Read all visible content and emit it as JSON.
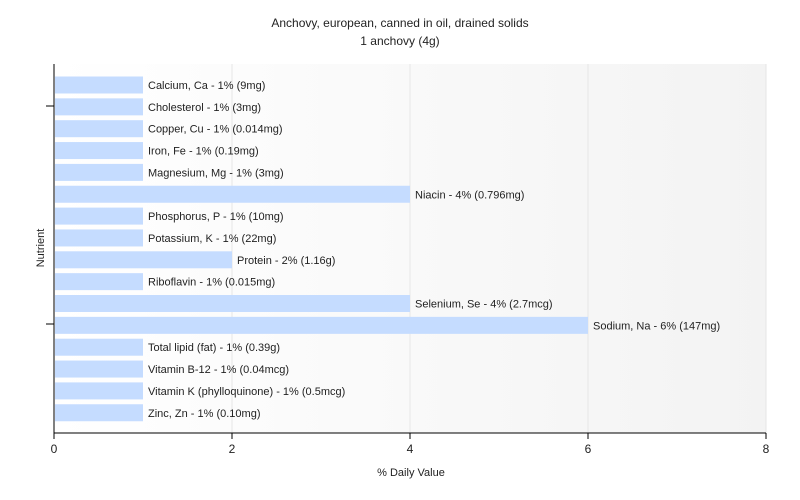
{
  "chart_data": {
    "type": "bar",
    "orientation": "horizontal",
    "title": "Anchovy, european, canned in oil, drained solids",
    "subtitle": "1 anchovy (4g)",
    "xlabel": "% Daily Value",
    "ylabel": "Nutrient",
    "xlim": [
      0,
      8
    ],
    "xticks": [
      0,
      2,
      4,
      6,
      8
    ],
    "grid": true,
    "bar_color": "#c5dcff",
    "categories": [
      "Calcium, Ca",
      "Cholesterol",
      "Copper, Cu",
      "Iron, Fe",
      "Magnesium, Mg",
      "Niacin",
      "Phosphorus, P",
      "Potassium, K",
      "Protein",
      "Riboflavin",
      "Selenium, Se",
      "Sodium, Na",
      "Total lipid (fat)",
      "Vitamin B-12",
      "Vitamin K (phylloquinone)",
      "Zinc, Zn"
    ],
    "values": [
      1,
      1,
      1,
      1,
      1,
      4,
      1,
      1,
      2,
      1,
      4,
      6,
      1,
      1,
      1,
      1
    ],
    "labels": [
      "Calcium, Ca - 1% (9mg)",
      "Cholesterol - 1% (3mg)",
      "Copper, Cu - 1% (0.014mg)",
      "Iron, Fe - 1% (0.19mg)",
      "Magnesium, Mg - 1% (3mg)",
      "Niacin - 4% (0.796mg)",
      "Phosphorus, P - 1% (10mg)",
      "Potassium, K - 1% (22mg)",
      "Protein - 2% (1.16g)",
      "Riboflavin - 1% (0.015mg)",
      "Selenium, Se - 4% (2.7mcg)",
      "Sodium, Na - 6% (147mg)",
      "Total lipid (fat) - 1% (0.39g)",
      "Vitamin B-12 - 1% (0.04mcg)",
      "Vitamin K (phylloquinone) - 1% (0.5mcg)",
      "Zinc, Zn - 1% (0.10mg)"
    ]
  }
}
